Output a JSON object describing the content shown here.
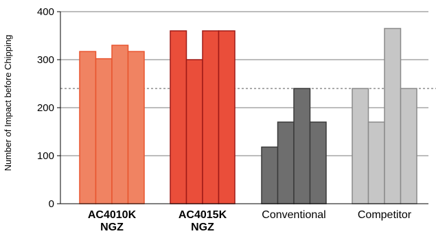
{
  "chart_data": {
    "type": "bar",
    "ylabel": "Number of Impact before Chipping",
    "ylim": [
      0,
      400
    ],
    "yticks": [
      0,
      100,
      200,
      300,
      400
    ],
    "grid": true,
    "reference_line": 240,
    "groups": [
      {
        "label_lines": [
          "AC4010K",
          "NGZ"
        ],
        "bold": true,
        "values": [
          317,
          302,
          330,
          317
        ],
        "fill": "#f08362",
        "stroke": "#e8542e"
      },
      {
        "label_lines": [
          "AC4015K",
          "NGZ"
        ],
        "bold": true,
        "values": [
          360,
          300,
          360,
          360
        ],
        "fill": "#ea4e3a",
        "stroke": "#9e1a17"
      },
      {
        "label_lines": [
          "Conventional"
        ],
        "bold": false,
        "values": [
          118,
          170,
          240,
          170
        ],
        "fill": "#6e6e6e",
        "stroke": "#3a3a3a"
      },
      {
        "label_lines": [
          "Competitor"
        ],
        "bold": false,
        "values": [
          240,
          170,
          365,
          240
        ],
        "fill": "#c6c6c6",
        "stroke": "#8a8a8a"
      }
    ]
  }
}
